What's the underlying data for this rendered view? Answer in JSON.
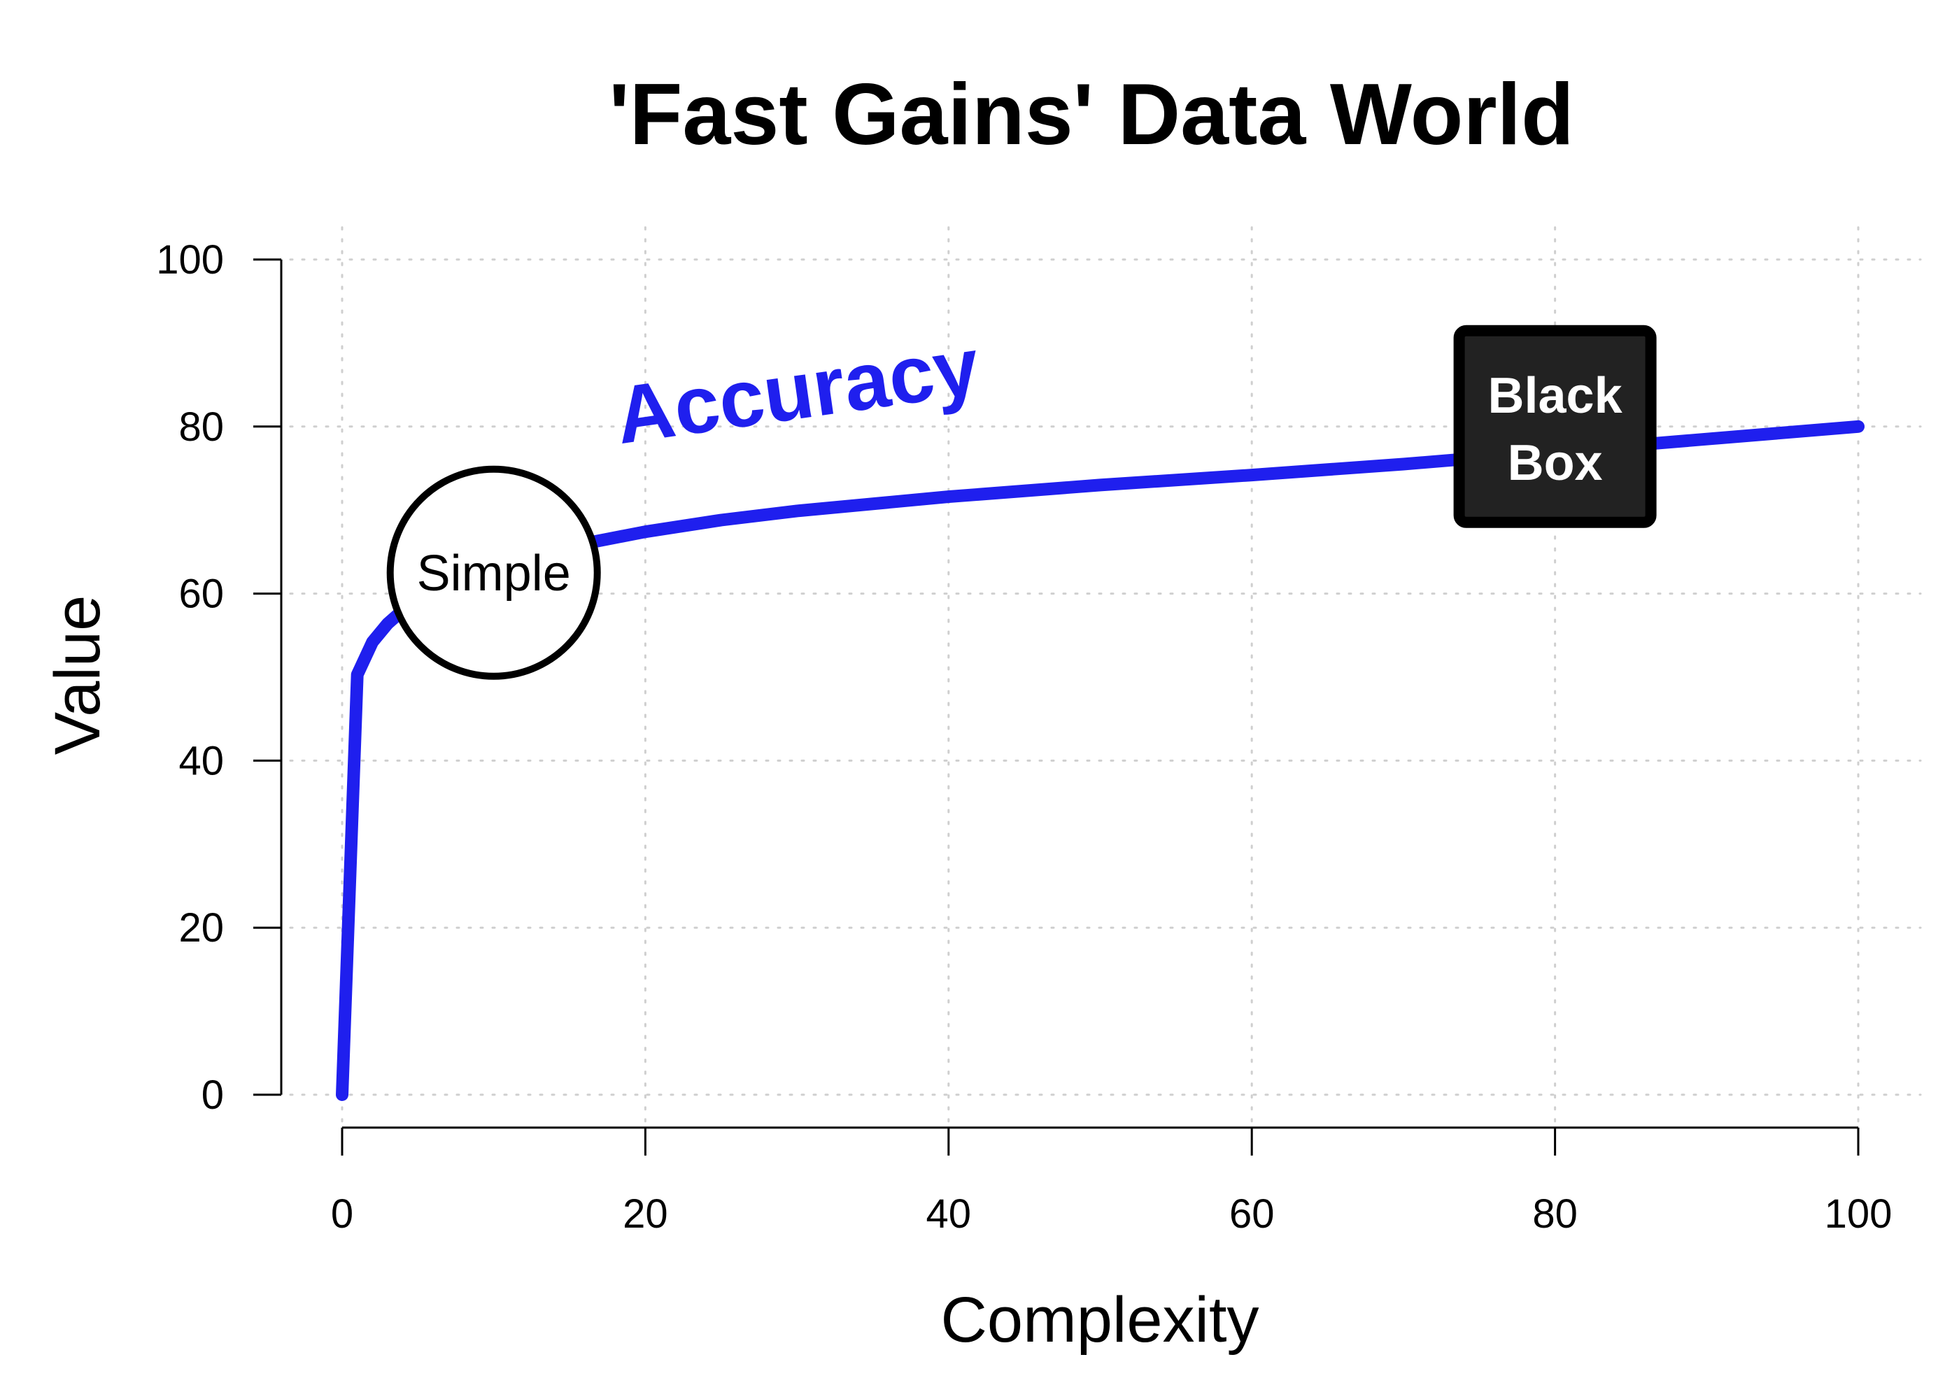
{
  "chart_data": {
    "type": "line",
    "title": "'Fast Gains' Data World",
    "xlabel": "Complexity",
    "ylabel": "Value",
    "xlim": [
      0,
      100
    ],
    "ylim": [
      0,
      100
    ],
    "xticks": [
      0,
      20,
      40,
      60,
      80,
      100
    ],
    "yticks": [
      0,
      20,
      40,
      60,
      80,
      100
    ],
    "grid": true,
    "series": [
      {
        "name": "Accuracy",
        "color": "#1f1fee",
        "x": [
          0,
          1,
          2,
          3,
          4,
          5,
          6,
          8,
          10,
          13,
          16,
          20,
          25,
          30,
          40,
          50,
          60,
          70,
          80,
          90,
          100
        ],
        "y": [
          0,
          50.3,
          54.2,
          56.4,
          58.0,
          59.2,
          60.3,
          61.9,
          63.2,
          64.8,
          66.0,
          67.4,
          68.8,
          69.9,
          71.6,
          73.0,
          74.2,
          75.5,
          77.0,
          78.5,
          80.0
        ]
      }
    ],
    "annotations": [
      {
        "label": "Simple",
        "shape": "circle",
        "x": 10,
        "y": 62.5
      },
      {
        "label_lines": [
          "Black",
          "Box"
        ],
        "shape": "square",
        "x": 80,
        "y": 80
      }
    ]
  }
}
